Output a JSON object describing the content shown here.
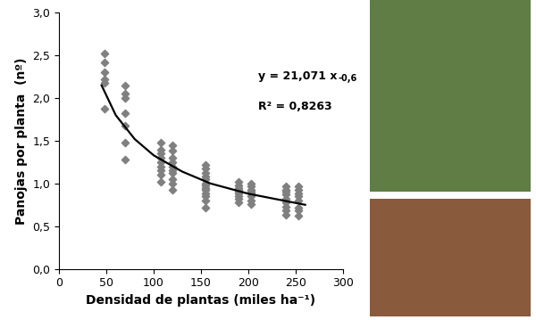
{
  "chart_data": {
    "type": "scatter",
    "xlabel": "Densidad de plantas (miles ha⁻¹)",
    "ylabel": "Panojas por planta  (nº)",
    "xlim": [
      0,
      300
    ],
    "xticks": [
      0,
      50,
      100,
      150,
      200,
      250,
      300
    ],
    "ylim": [
      0,
      3
    ],
    "yticks": [
      {
        "value": 0,
        "label": "0,0"
      },
      {
        "value": 0.5,
        "label": "0,5"
      },
      {
        "value": 1,
        "label": "1,0"
      },
      {
        "value": 1.5,
        "label": "1,5"
      },
      {
        "value": 2,
        "label": "2,0"
      },
      {
        "value": 2.5,
        "label": "2,5"
      },
      {
        "value": 3,
        "label": "3,0"
      }
    ],
    "grid": false,
    "annotations": [
      {
        "text": "y = 21,071 x",
        "superscript": "-0,6"
      },
      {
        "text": "R² = 0,8263"
      }
    ],
    "series": [
      {
        "type": "scatter",
        "color": "#808080",
        "marker": "diamond",
        "x": [
          48,
          48,
          48,
          48,
          48,
          48,
          70,
          70,
          70,
          70,
          70,
          70,
          70,
          108,
          108,
          108,
          108,
          108,
          108,
          108,
          108,
          108,
          120,
          120,
          120,
          120,
          120,
          120,
          120,
          120,
          120,
          120,
          155,
          155,
          155,
          155,
          155,
          155,
          155,
          155,
          155,
          155,
          155,
          155,
          155,
          190,
          190,
          190,
          190,
          190,
          190,
          190,
          190,
          190,
          203,
          203,
          203,
          203,
          203,
          203,
          203,
          203,
          240,
          240,
          240,
          240,
          240,
          240,
          240,
          240,
          240,
          253,
          253,
          253,
          253,
          253,
          253,
          253,
          253
        ],
        "values": [
          2.52,
          2.42,
          2.3,
          2.22,
          2.18,
          1.88,
          2.15,
          2.05,
          2.0,
          1.82,
          1.68,
          1.48,
          1.28,
          1.48,
          1.4,
          1.35,
          1.3,
          1.25,
          1.2,
          1.15,
          1.1,
          1.02,
          1.45,
          1.38,
          1.3,
          1.25,
          1.2,
          1.15,
          1.12,
          1.05,
          1.0,
          0.92,
          1.22,
          1.18,
          1.12,
          1.08,
          1.05,
          1.0,
          0.98,
          0.95,
          0.92,
          0.88,
          0.85,
          0.8,
          0.72,
          1.02,
          0.98,
          0.95,
          0.92,
          0.9,
          0.88,
          0.85,
          0.82,
          0.78,
          1.0,
          0.97,
          0.93,
          0.9,
          0.88,
          0.85,
          0.8,
          0.76,
          0.97,
          0.93,
          0.9,
          0.87,
          0.82,
          0.78,
          0.73,
          0.68,
          0.63,
          0.97,
          0.93,
          0.88,
          0.85,
          0.8,
          0.72,
          0.68,
          0.62
        ]
      },
      {
        "type": "line",
        "color": "#000000",
        "line_style": "solid",
        "x": [
          45,
          60,
          80,
          100,
          130,
          160,
          200,
          260
        ],
        "values": [
          2.15,
          1.8,
          1.52,
          1.33,
          1.14,
          1.0,
          0.88,
          0.75
        ]
      }
    ]
  }
}
